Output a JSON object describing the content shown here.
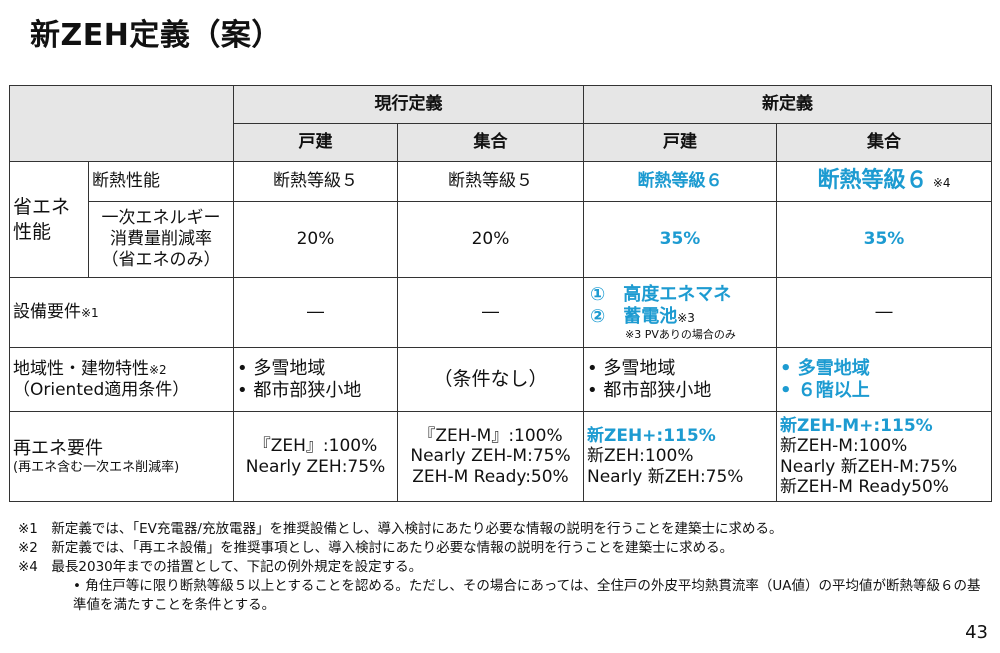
{
  "title": "新ZEH定義（案）",
  "header": {
    "current": "現行定義",
    "new": "新定義",
    "detached": "戸建",
    "collective": "集合"
  },
  "rows": {
    "energy_group": "省エネ\n性能",
    "insulation": {
      "label": "断熱性能",
      "cur_detached": "断熱等級５",
      "cur_collective": "断熱等級５",
      "new_detached": "断熱等級６",
      "new_collective": "断熱等級６",
      "new_collective_note": "※4"
    },
    "primary": {
      "label": "一次エネルギー\n消費量削減率\n（省エネのみ）",
      "cur_detached": "20%",
      "cur_collective": "20%",
      "new_detached": "35%",
      "new_collective": "35%"
    },
    "equipment": {
      "label": "設備要件",
      "label_note": "※1",
      "cur_detached": "―",
      "cur_collective": "―",
      "new_item1": "①　高度エネマネ",
      "new_item2": "②　蓄電池",
      "new_item2_note": "※3",
      "new_note": "※3 PVありの場合のみ",
      "new_collective": "―"
    },
    "regional": {
      "label": "地域性・建物特性",
      "label_note": "※2",
      "label2": "（Oriented適用条件）",
      "cur_detached_1": "•  多雪地域",
      "cur_detached_2": "•  都市部狭小地",
      "cur_collective": "（条件なし）",
      "new_detached_1": "•  多雪地域",
      "new_detached_2": "•  都市部狭小地",
      "new_collective_1": "•  多雪地域",
      "new_collective_2": "•  ６階以上"
    },
    "renewable": {
      "label": "再エネ要件",
      "label2": "(再エネ含む一次エネ削減率)",
      "cur_detached_1": "『ZEH』:100%",
      "cur_detached_2": "Nearly ZEH:75%",
      "cur_collective_1": "『ZEH-M』:100%",
      "cur_collective_2": "Nearly ZEH-M:75%",
      "cur_collective_3": "ZEH-M Ready:50%",
      "new_detached_1": "新ZEH+:115%",
      "new_detached_2": "新ZEH:100%",
      "new_detached_3": "Nearly 新ZEH:75%",
      "new_collective_1": "新ZEH-M+:115%",
      "new_collective_2": "新ZEH-M:100%",
      "new_collective_3": "Nearly 新ZEH-M:75%",
      "new_collective_4": "新ZEH-M Ready50%"
    }
  },
  "footnotes": {
    "n1": "※1　新定義では、「EV充電器/充放電器」を推奨設備とし、導入検討にあたり必要な情報の説明を行うことを建築士に求める。",
    "n2": "※2　新定義では、「再エネ設備」を推奨事項とし、導入検討にあたり必要な情報の説明を行うことを建築士に求める。",
    "n4": "※4　最長2030年までの措置として、下記の例外規定を設定する。",
    "n4_sub": "•  角住戸等に限り断熱等級５以上とすることを認める。ただし、その場合にあっては、全住戸の外皮平均熱貫流率（UA値）の平均値が断熱等級６の基準値を満たすことを条件とする。"
  },
  "page_number": "43",
  "colors": {
    "accent": "#1d9bd1",
    "header_bg": "#e6e6e6"
  }
}
